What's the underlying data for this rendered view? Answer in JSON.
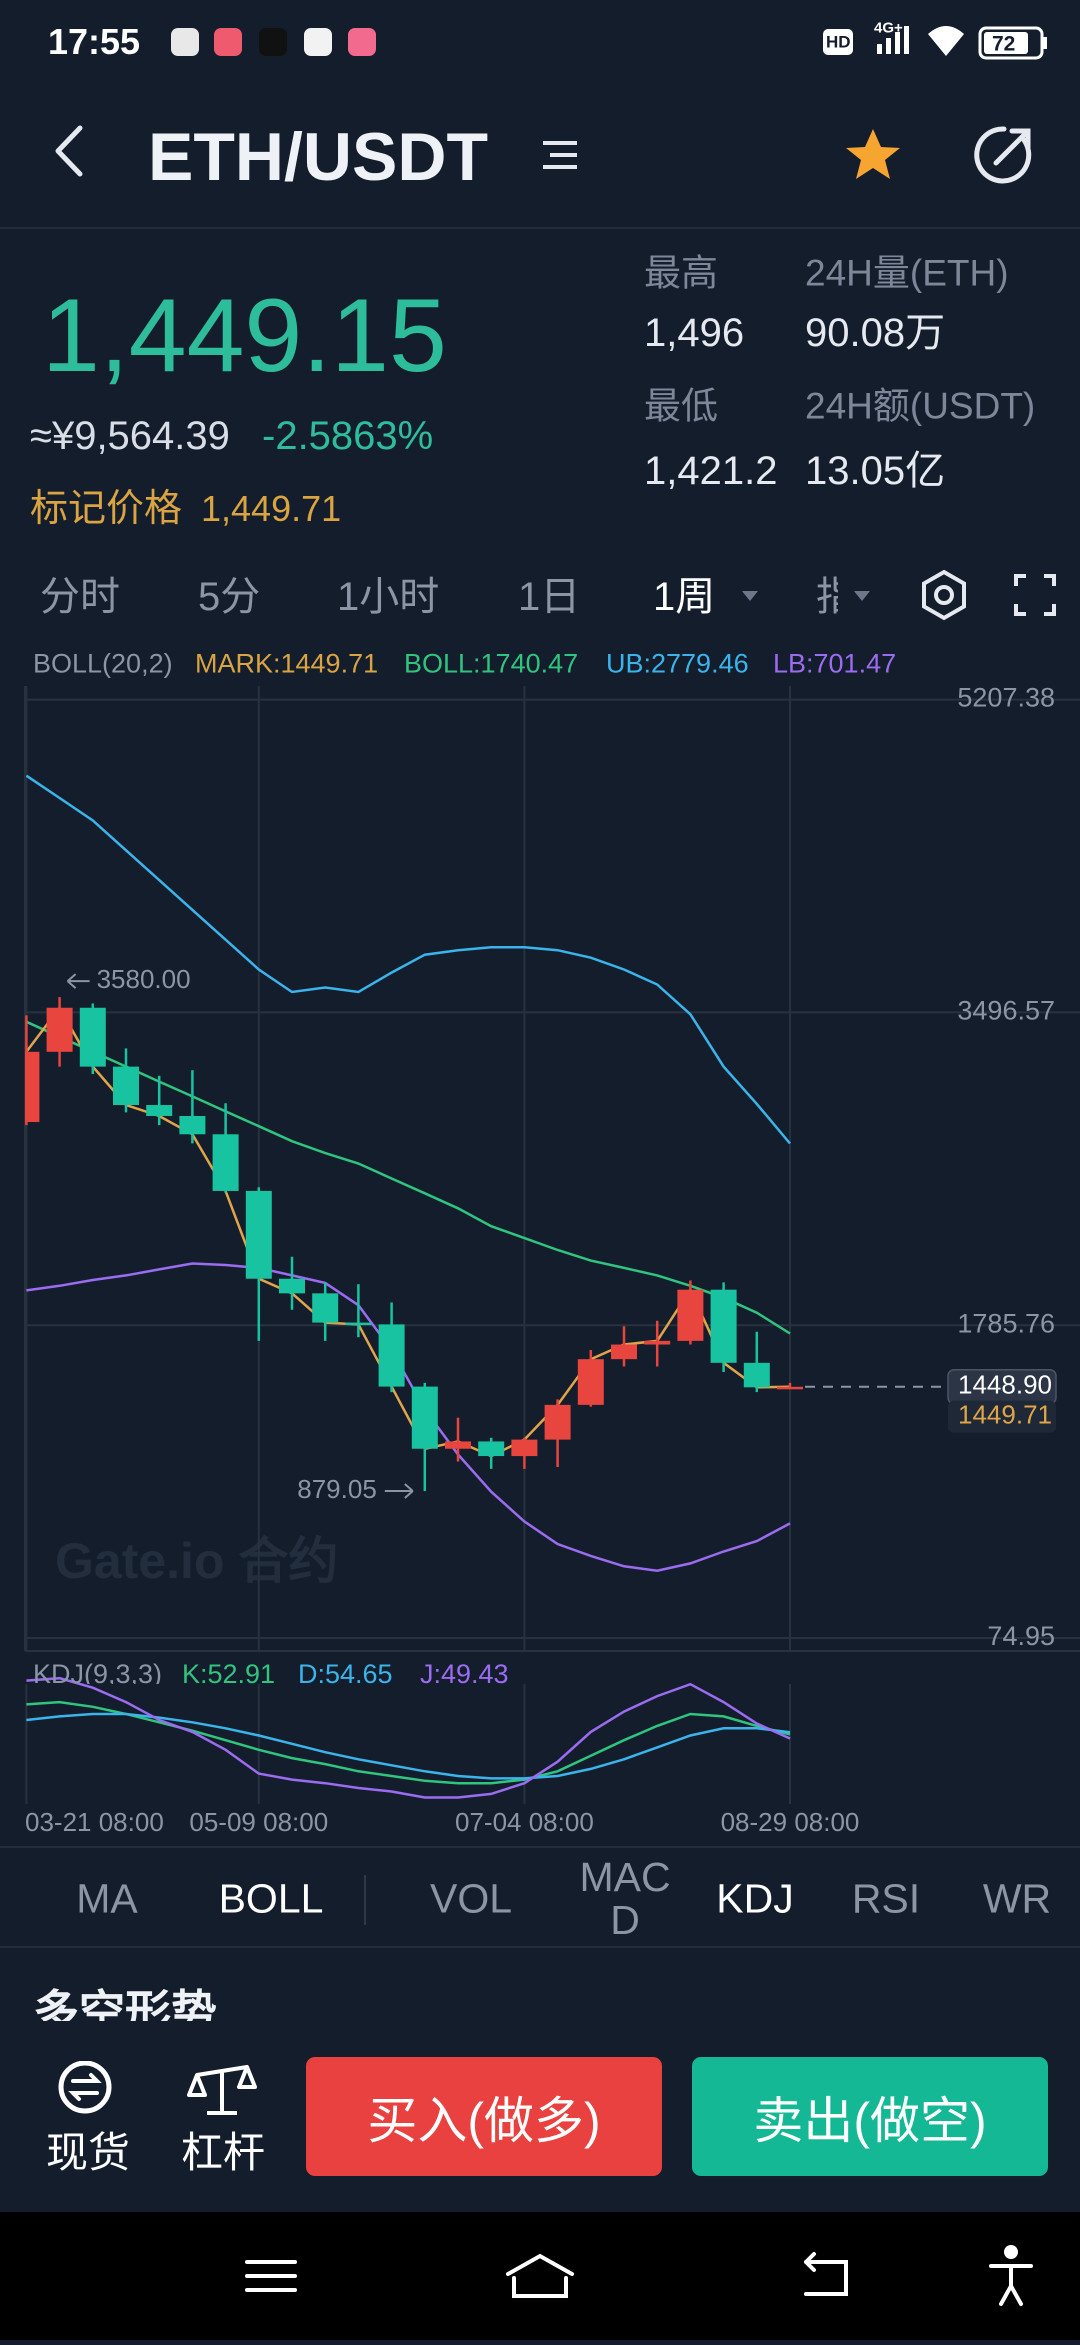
{
  "status_bar": {
    "time": "17:55",
    "hd": "HD",
    "network": "4G+",
    "battery": "72"
  },
  "header": {
    "title": "ETH/USDT"
  },
  "ticker": {
    "last_price": "1,449.15",
    "cny_price": "≈¥9,564.39",
    "change": "-2.5863%",
    "mark_price_label": "标记价格",
    "mark_price": "1,449.71",
    "high_label": "最高",
    "high": "1,496",
    "low_label": "最低",
    "low": "1,421.2",
    "volume_label": "24H量(ETH)",
    "volume": "90.08万",
    "turnover_label": "24H额(USDT)",
    "turnover": "13.05亿"
  },
  "timeframes": [
    "分时",
    "5分",
    "1小时",
    "1日",
    "1周",
    "指标"
  ],
  "boll_legend": [
    "BOLL(20,2)",
    "MARK:1449.71",
    "BOLL:1740.47",
    "UB:2779.46",
    "LB:701.47"
  ],
  "chart_data": {
    "type": "candlestick",
    "categories": [
      "03-21 08:00",
      null,
      null,
      null,
      null,
      null,
      null,
      "05-09 08:00",
      null,
      null,
      null,
      null,
      null,
      null,
      null,
      "07-04 08:00",
      null,
      null,
      null,
      null,
      null,
      null,
      null,
      "08-29 08:00"
    ],
    "open": [
      2897,
      3281,
      3522,
      3200,
      2990,
      2930,
      2830,
      2520,
      2040,
      1960,
      1800,
      1790,
      1450,
      1110,
      1150,
      1070,
      1160,
      1350,
      1600,
      1680,
      1700,
      1980,
      1580,
      1446
    ],
    "high": [
      3480,
      3580,
      3545,
      3300,
      3150,
      3180,
      3000,
      2540,
      2160,
      2020,
      2010,
      1910,
      1470,
      1280,
      1170,
      1170,
      1380,
      1650,
      1780,
      1810,
      2030,
      2020,
      1750,
      1470
    ],
    "low": [
      2880,
      3200,
      3160,
      2950,
      2880,
      2780,
      2510,
      1700,
      1870,
      1700,
      1720,
      1420,
      879.05,
      1040,
      1000,
      1000,
      1010,
      1340,
      1560,
      1560,
      1680,
      1530,
      1420,
      1440
    ],
    "close": [
      3281,
      3522,
      3200,
      2990,
      2930,
      2830,
      2520,
      2040,
      1960,
      1800,
      1790,
      1450,
      1110,
      1150,
      1070,
      1160,
      1350,
      1600,
      1680,
      1700,
      1980,
      1580,
      1446,
      1448.9
    ],
    "up_color": "#e8453e",
    "down_color": "#17c3a0",
    "overlays": [
      {
        "color": "#3ab4ea",
        "values": [
          4791,
          4669,
          4546,
          4383,
          4220,
          4057,
          3894,
          3731,
          3608,
          3633,
          3608,
          3714,
          3812,
          3837,
          3853,
          3853,
          3837,
          3796,
          3731,
          3649,
          3486,
          3200,
          2996,
          2779.46
        ]
      },
      {
        "color": "#2fc57f",
        "values": [
          3445,
          3363,
          3282,
          3200,
          3118,
          3037,
          2955,
          2874,
          2792,
          2727,
          2670,
          2588,
          2507,
          2425,
          2327,
          2262,
          2197,
          2139,
          2099,
          2058,
          2001,
          1936,
          1854,
          1740.47
        ]
      },
      {
        "color": "#9b6cf0",
        "values": [
          1976,
          2001,
          2033,
          2058,
          2091,
          2123,
          2115,
          2099,
          2058,
          2017,
          1895,
          1650,
          1324,
          1079,
          875,
          712,
          589,
          524,
          467,
          443,
          483,
          548,
          605,
          701.47
        ]
      }
    ],
    "line_color": "#e0a54a",
    "ylim": [
      74.95,
      5207.38
    ],
    "yticks": [
      74.95,
      1785.76,
      3496.57,
      5207.38
    ],
    "grid": true,
    "high_annotation": "3580.00",
    "low_annotation": "879.05",
    "last_price_line": {
      "value": 1448.9,
      "label": "1448.90"
    },
    "mark_price_line": 1449.71,
    "watermark": "Gate.io 合约"
  },
  "kdj": {
    "legend": [
      "KDJ(9,3,3)",
      "K:52.91",
      "D:54.65",
      "J:49.43"
    ],
    "series": [
      {
        "color": "#2fc57f",
        "values": [
          78,
          80,
          76,
          70,
          63,
          56,
          48,
          40,
          33,
          28,
          22,
          18,
          14,
          12,
          12,
          15,
          22,
          35,
          48,
          60,
          70,
          68,
          60,
          52.91
        ]
      },
      {
        "color": "#3ab4ea",
        "values": [
          65,
          68,
          70,
          70,
          67,
          63,
          58,
          52,
          45,
          38,
          32,
          27,
          22,
          18,
          16,
          16,
          18,
          24,
          32,
          42,
          52,
          58,
          58,
          54.65
        ]
      },
      {
        "color": "#9b6cf0",
        "values": [
          98,
          100,
          92,
          80,
          65,
          55,
          40,
          20,
          15,
          12,
          8,
          5,
          0,
          0,
          3,
          12,
          30,
          55,
          72,
          85,
          95,
          80,
          62,
          49.43
        ]
      }
    ]
  },
  "indicators": [
    "MA",
    "BOLL",
    "VOL",
    "MACD",
    "KDJ",
    "RSI",
    "WR"
  ],
  "section_title": "多空形势",
  "bottom": {
    "spot": "现货",
    "margin": "杠杆",
    "buy": "买入(做多)",
    "sell": "卖出(做空)"
  }
}
